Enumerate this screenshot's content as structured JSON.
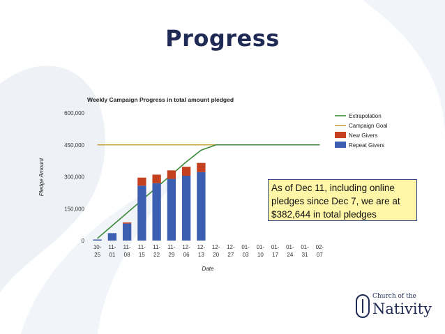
{
  "slide": {
    "title": "Progress"
  },
  "callout": {
    "text": "As of Dec 11, including online pledges since Dec 7, we are at $382,644 in total pledges"
  },
  "logo": {
    "line1": "Church of the",
    "line2": "Nativity"
  },
  "colors": {
    "repeat_givers": "#3b5eb0",
    "new_givers": "#c4401f",
    "campaign_goal": "#c8a33a",
    "extrapolation": "#3a8a3a",
    "title": "#1f2a55",
    "callout_bg": "#fff6a8"
  },
  "chart_data": {
    "type": "bar",
    "title": "Weekly Campaign Progress in total amount pledged",
    "xlabel": "Date",
    "ylabel": "Pledge Amount",
    "ylim": [
      0,
      600000
    ],
    "yticks": [
      "600,000",
      "450,000",
      "300,000",
      "150,000",
      "0"
    ],
    "ytick_values": [
      600000,
      450000,
      300000,
      150000,
      0
    ],
    "categories": [
      "10-25",
      "11-01",
      "11-08",
      "11-15",
      "11-22",
      "11-29",
      "12-06",
      "12-13",
      "12-20",
      "12-27",
      "01-03",
      "01-10",
      "01-17",
      "01-24",
      "01-31",
      "02-07"
    ],
    "stacked": true,
    "series": [
      {
        "name": "Repeat Givers",
        "kind": "bar",
        "values": [
          5000,
          35000,
          80000,
          258000,
          270000,
          290000,
          305000,
          322000,
          null,
          null,
          null,
          null,
          null,
          null,
          null,
          null
        ]
      },
      {
        "name": "New Givers",
        "kind": "bar",
        "values": [
          0,
          0,
          5000,
          38000,
          40000,
          40000,
          42000,
          43000,
          null,
          null,
          null,
          null,
          null,
          null,
          null,
          null
        ]
      },
      {
        "name": "Campaign Goal",
        "kind": "line",
        "values": [
          450000,
          450000,
          450000,
          450000,
          450000,
          450000,
          450000,
          450000,
          450000,
          450000,
          450000,
          450000,
          450000,
          450000,
          450000,
          450000
        ]
      },
      {
        "name": "Extrapolation",
        "kind": "line",
        "values": [
          10000,
          70000,
          130000,
          190000,
          250000,
          310000,
          370000,
          425000,
          450000,
          450000,
          450000,
          450000,
          450000,
          450000,
          450000,
          450000
        ]
      }
    ],
    "legend": {
      "placement": "top-right",
      "order": [
        "Extrapolation",
        "Campaign Goal",
        "New Givers",
        "Repeat Givers"
      ]
    }
  }
}
